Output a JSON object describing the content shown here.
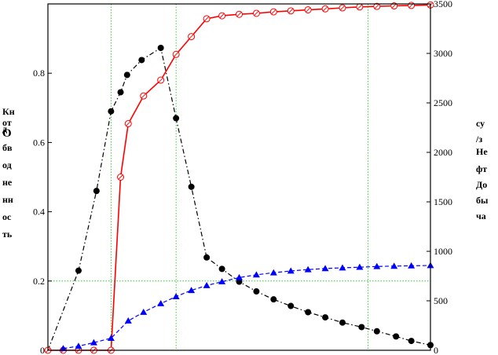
{
  "chart_data": {
    "type": "line",
    "title": "",
    "xlabel": "",
    "ylabel_left_lines": [
      "Кн",
      "от",
      "д",
      "О",
      "бв",
      "од",
      "не",
      "нн",
      "ос",
      "ть"
    ],
    "ylabel_right_lines": [
      "су",
      "/з",
      "Не",
      "фт",
      "До",
      "бы",
      "ча"
    ],
    "xlim": [
      0,
      100
    ],
    "ylim_left": [
      0,
      1.0
    ],
    "ylim_right": [
      0,
      3500
    ],
    "yticks_left": [
      0,
      0.2,
      0.4,
      0.6,
      0.8
    ],
    "yticks_left_labels": [
      "0",
      "0.2",
      "0.4",
      "0.6",
      "0.8"
    ],
    "yticks_right": [
      0,
      500,
      1000,
      1500,
      2000,
      2500,
      3000,
      3500
    ],
    "yticks_right_labels": [
      "0",
      "500",
      "1000",
      "1500",
      "2000",
      "2500",
      "3000",
      "3500"
    ],
    "grid_x": [
      16.5,
      33.5,
      83.7
    ],
    "grid_y_left": [
      0.2
    ],
    "series": [
      {
        "axis": "left",
        "color": "#000000",
        "marker": "filled-circle",
        "line": "dash-dot",
        "points": [
          [
            0,
            0
          ],
          [
            8,
            0.23
          ],
          [
            12.7,
            0.46
          ],
          [
            16.5,
            0.69
          ],
          [
            19,
            0.745
          ],
          [
            20.7,
            0.795
          ],
          [
            24.5,
            0.838
          ],
          [
            29.5,
            0.873
          ],
          [
            33.5,
            0.67
          ],
          [
            37.5,
            0.472
          ],
          [
            41.5,
            0.268
          ],
          [
            45.5,
            0.235
          ],
          [
            50,
            0.198
          ],
          [
            54.5,
            0.17
          ],
          [
            59,
            0.147
          ],
          [
            63.5,
            0.128
          ],
          [
            68,
            0.11
          ],
          [
            72.5,
            0.095
          ],
          [
            77,
            0.08
          ],
          [
            82,
            0.067
          ],
          [
            86,
            0.055
          ],
          [
            91,
            0.04
          ],
          [
            95,
            0.027
          ],
          [
            100,
            0.015
          ]
        ]
      },
      {
        "axis": "right",
        "color": "#ff0000",
        "marker": "open-circle",
        "line": "solid",
        "points": [
          [
            0,
            0
          ],
          [
            4,
            0
          ],
          [
            8,
            0
          ],
          [
            12,
            0
          ],
          [
            16.5,
            0
          ],
          [
            19,
            1750
          ],
          [
            21,
            2290
          ],
          [
            25,
            2570
          ],
          [
            29.5,
            2730
          ],
          [
            33.5,
            2990
          ],
          [
            37.5,
            3170
          ],
          [
            41.5,
            3350
          ],
          [
            45.5,
            3380
          ],
          [
            50,
            3395
          ],
          [
            54.5,
            3405
          ],
          [
            59,
            3420
          ],
          [
            63.5,
            3430
          ],
          [
            68,
            3440
          ],
          [
            72.5,
            3450
          ],
          [
            77,
            3460
          ],
          [
            81.5,
            3470
          ],
          [
            86,
            3475
          ],
          [
            90.5,
            3480
          ],
          [
            95,
            3485
          ],
          [
            100,
            3490
          ]
        ]
      },
      {
        "axis": "left",
        "color": "#0000ff",
        "marker": "filled-triangle",
        "line": "dashed",
        "points": [
          [
            4,
            0.005
          ],
          [
            8,
            0.012
          ],
          [
            12,
            0.022
          ],
          [
            16.5,
            0.035
          ],
          [
            21,
            0.085
          ],
          [
            25,
            0.11
          ],
          [
            29.5,
            0.135
          ],
          [
            33.5,
            0.155
          ],
          [
            37.5,
            0.173
          ],
          [
            41.5,
            0.187
          ],
          [
            45.5,
            0.198
          ],
          [
            50,
            0.21
          ],
          [
            54.5,
            0.218
          ],
          [
            59,
            0.224
          ],
          [
            63.5,
            0.229
          ],
          [
            68,
            0.233
          ],
          [
            72.5,
            0.236
          ],
          [
            77,
            0.238
          ],
          [
            81.5,
            0.24
          ],
          [
            86,
            0.242
          ],
          [
            90.5,
            0.243
          ],
          [
            95,
            0.244
          ],
          [
            100,
            0.245
          ]
        ]
      }
    ]
  }
}
